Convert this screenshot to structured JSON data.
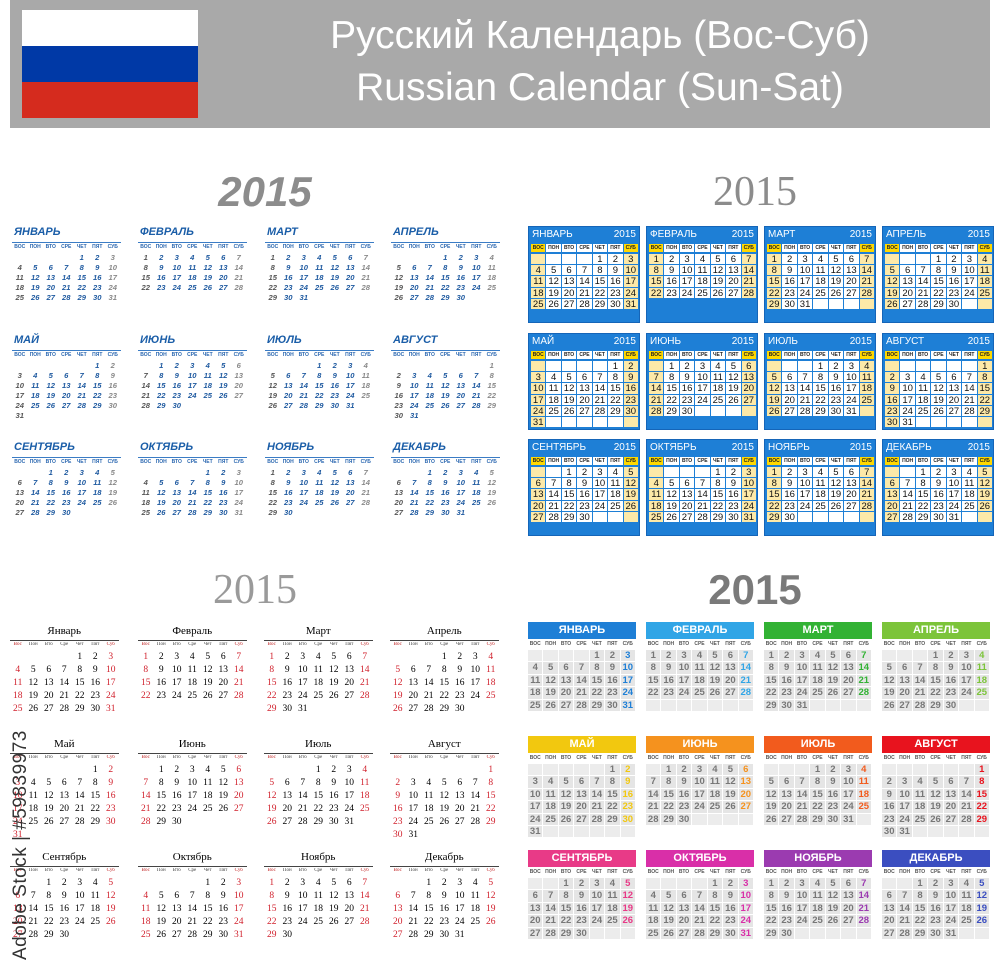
{
  "header": {
    "title_ru": "Русский Календарь (Вос-Суб)",
    "title_en": "Russian Calendar (Sun-Sat)",
    "flag_colors": [
      "#ffffff",
      "#0039a6",
      "#d52b1e"
    ]
  },
  "year": "2015",
  "weekdays_upper": [
    "ВОС",
    "ПОН",
    "ВТО",
    "СРЕ",
    "ЧЕТ",
    "ПЯТ",
    "СУБ"
  ],
  "weekdays_title": [
    "Вос",
    "Пон",
    "Вто",
    "Сре",
    "Чет",
    "Пят",
    "Суб"
  ],
  "months_upper": [
    "ЯНВАРЬ",
    "ФЕВРАЛЬ",
    "МАРТ",
    "АПРЕЛЬ",
    "МАЙ",
    "ИЮНЬ",
    "ИЮЛЬ",
    "АВГУСТ",
    "СЕНТЯБРЬ",
    "ОКТЯБРЬ",
    "НОЯБРЬ",
    "ДЕКАБРЬ"
  ],
  "months_title": [
    "Январь",
    "Февраль",
    "Март",
    "Апрель",
    "Май",
    "Июнь",
    "Июль",
    "Август",
    "Сентябрь",
    "Октябрь",
    "Ноябрь",
    "Декабрь"
  ],
  "months_days": [
    31,
    28,
    31,
    30,
    31,
    30,
    31,
    31,
    30,
    31,
    30,
    31
  ],
  "first_weekday_index": [
    4,
    0,
    0,
    3,
    5,
    1,
    3,
    6,
    2,
    4,
    0,
    2
  ],
  "mosaic_colors": [
    "#1e7fd6",
    "#30a5e6",
    "#32b234",
    "#7cc43a",
    "#f2c80f",
    "#f5921e",
    "#f25b1d",
    "#e8131e",
    "#e83a87",
    "#d92fa8",
    "#9b3bb0",
    "#3b4ec0"
  ],
  "watermark": "Adobe Stock | #59839973"
}
